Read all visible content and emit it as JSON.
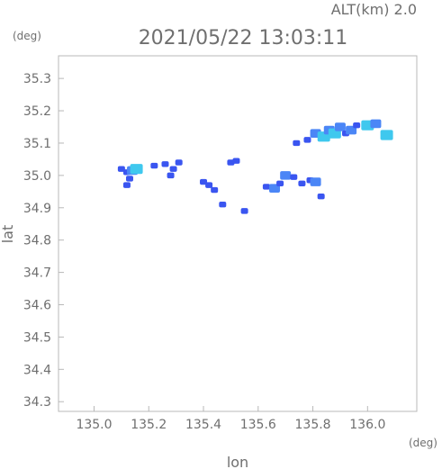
{
  "chart_data": {
    "type": "heatmap",
    "title": "2021/05/22 13:03:11",
    "subtitle": "ALT(km) 2.0",
    "xlabel": "lon",
    "ylabel": "lat",
    "xunit": "(deg)",
    "yunit": "(deg)",
    "xlim": [
      134.87,
      136.18
    ],
    "ylim": [
      34.27,
      35.37
    ],
    "xticks": [
      "135.0",
      "135.2",
      "135.4",
      "135.6",
      "135.8",
      "136.0"
    ],
    "yticks": [
      "34.3",
      "34.4",
      "34.5",
      "34.6",
      "34.7",
      "34.8",
      "34.9",
      "35.0",
      "35.1",
      "35.2",
      "35.3"
    ],
    "grid": false,
    "colors": {
      "low": "#3a55f0",
      "mid": "#4b86f6",
      "high": "#3fc8ee",
      "frame": "#b8b8b8",
      "text": "#6f6f6f"
    },
    "cells": [
      {
        "lon": 135.12,
        "lat": 35.01,
        "level": "low"
      },
      {
        "lon": 135.14,
        "lat": 35.015,
        "level": "mid"
      },
      {
        "lon": 135.155,
        "lat": 35.02,
        "level": "high"
      },
      {
        "lon": 135.13,
        "lat": 34.99,
        "level": "low"
      },
      {
        "lon": 135.1,
        "lat": 35.02,
        "level": "low"
      },
      {
        "lon": 135.12,
        "lat": 34.97,
        "level": "low"
      },
      {
        "lon": 135.22,
        "lat": 35.03,
        "level": "low"
      },
      {
        "lon": 135.26,
        "lat": 35.035,
        "level": "low"
      },
      {
        "lon": 135.29,
        "lat": 35.02,
        "level": "low"
      },
      {
        "lon": 135.31,
        "lat": 35.04,
        "level": "low"
      },
      {
        "lon": 135.28,
        "lat": 35.0,
        "level": "low"
      },
      {
        "lon": 135.4,
        "lat": 34.98,
        "level": "low"
      },
      {
        "lon": 135.42,
        "lat": 34.97,
        "level": "low"
      },
      {
        "lon": 135.44,
        "lat": 34.955,
        "level": "low"
      },
      {
        "lon": 135.5,
        "lat": 35.04,
        "level": "low"
      },
      {
        "lon": 135.52,
        "lat": 35.045,
        "level": "low"
      },
      {
        "lon": 135.47,
        "lat": 34.91,
        "level": "low"
      },
      {
        "lon": 135.55,
        "lat": 34.89,
        "level": "low"
      },
      {
        "lon": 135.63,
        "lat": 34.965,
        "level": "low"
      },
      {
        "lon": 135.66,
        "lat": 34.96,
        "level": "mid"
      },
      {
        "lon": 135.68,
        "lat": 34.975,
        "level": "low"
      },
      {
        "lon": 135.7,
        "lat": 35.0,
        "level": "mid"
      },
      {
        "lon": 135.73,
        "lat": 34.995,
        "level": "low"
      },
      {
        "lon": 135.76,
        "lat": 34.975,
        "level": "low"
      },
      {
        "lon": 135.79,
        "lat": 34.985,
        "level": "low"
      },
      {
        "lon": 135.81,
        "lat": 34.98,
        "level": "mid"
      },
      {
        "lon": 135.83,
        "lat": 34.935,
        "level": "low"
      },
      {
        "lon": 135.74,
        "lat": 35.1,
        "level": "low"
      },
      {
        "lon": 135.78,
        "lat": 35.11,
        "level": "low"
      },
      {
        "lon": 135.81,
        "lat": 35.13,
        "level": "mid"
      },
      {
        "lon": 135.84,
        "lat": 35.12,
        "level": "high"
      },
      {
        "lon": 135.86,
        "lat": 35.14,
        "level": "mid"
      },
      {
        "lon": 135.88,
        "lat": 35.13,
        "level": "high"
      },
      {
        "lon": 135.9,
        "lat": 35.15,
        "level": "mid"
      },
      {
        "lon": 135.92,
        "lat": 35.13,
        "level": "low"
      },
      {
        "lon": 135.94,
        "lat": 35.14,
        "level": "mid"
      },
      {
        "lon": 135.96,
        "lat": 35.155,
        "level": "low"
      },
      {
        "lon": 136.0,
        "lat": 35.155,
        "level": "high"
      },
      {
        "lon": 136.03,
        "lat": 35.16,
        "level": "mid"
      },
      {
        "lon": 136.07,
        "lat": 35.125,
        "level": "high"
      }
    ]
  }
}
